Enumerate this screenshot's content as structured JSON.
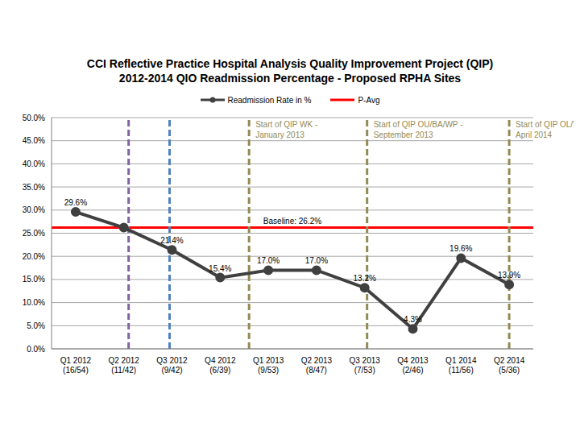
{
  "chart_data": {
    "type": "line",
    "title": "CCI Reflective Practice Hospital Analysis Quality Improvement Project (QIP)",
    "subtitle": "2012-2014 QIO Readmission Percentage - Proposed RPHA Sites",
    "categories": [
      "Q1 2012 (16/54)",
      "Q2 2012 (11/42)",
      "Q3 2012 (9/42)",
      "Q4 2012 (6/39)",
      "Q1 2013 (9/53)",
      "Q2 2013 (8/47)",
      "Q3 2013 (7/53)",
      "Q4 2013 (2/46)",
      "Q1 2014 (11/56)",
      "Q2 2014 (5/36)"
    ],
    "series": [
      {
        "name": "Readmission Rate in %",
        "color": "#404040",
        "marker": "circle",
        "values": [
          29.6,
          26.2,
          21.4,
          15.4,
          17.0,
          17.0,
          13.2,
          4.3,
          19.6,
          13.9
        ],
        "value_labels": [
          "29.6%",
          null,
          "21.4%",
          "15.4%",
          "17.0%",
          "17.0%",
          "13.2%",
          "4.3%",
          "19.6%",
          "13.9%"
        ]
      }
    ],
    "reference_lines": [
      {
        "name": "P-Avg",
        "y": 26.2,
        "label": "Baseline: 26.2%",
        "color": "#ff0000"
      }
    ],
    "vertical_lines": [
      {
        "x": 1.1,
        "color": "#8064a2",
        "line_style": "dashed"
      },
      {
        "x": 1.95,
        "color": "#4f81bd",
        "line_style": "dashed"
      },
      {
        "x": 3.6,
        "color": "#948a54",
        "line_style": "dashed",
        "label": [
          "Start of QIP WK -",
          "January 2013"
        ]
      },
      {
        "x": 6.05,
        "color": "#948a54",
        "line_style": "dashed",
        "label": [
          "Start of QIP OU/BA/WP -",
          "September 2013"
        ]
      },
      {
        "x": 9.0,
        "color": "#948a54",
        "line_style": "dashed",
        "label": [
          "Start of QIP OL/WA-",
          "April 2014"
        ]
      }
    ],
    "ylim": [
      0,
      50
    ],
    "yticks": [
      {
        "value": 0,
        "label": "0.0%"
      },
      {
        "value": 5,
        "label": "5.0%"
      },
      {
        "value": 10,
        "label": "10.0%"
      },
      {
        "value": 15,
        "label": "15.0%"
      },
      {
        "value": 20,
        "label": "20.0%"
      },
      {
        "value": 25,
        "label": "25.0%"
      },
      {
        "value": 30,
        "label": "30.0%"
      },
      {
        "value": 35,
        "label": "35.0%"
      },
      {
        "value": 40,
        "label": "40.0%"
      },
      {
        "value": 45,
        "label": "45.0%"
      },
      {
        "value": 50,
        "label": "50.0%"
      }
    ],
    "grid": true,
    "legend": "top"
  }
}
